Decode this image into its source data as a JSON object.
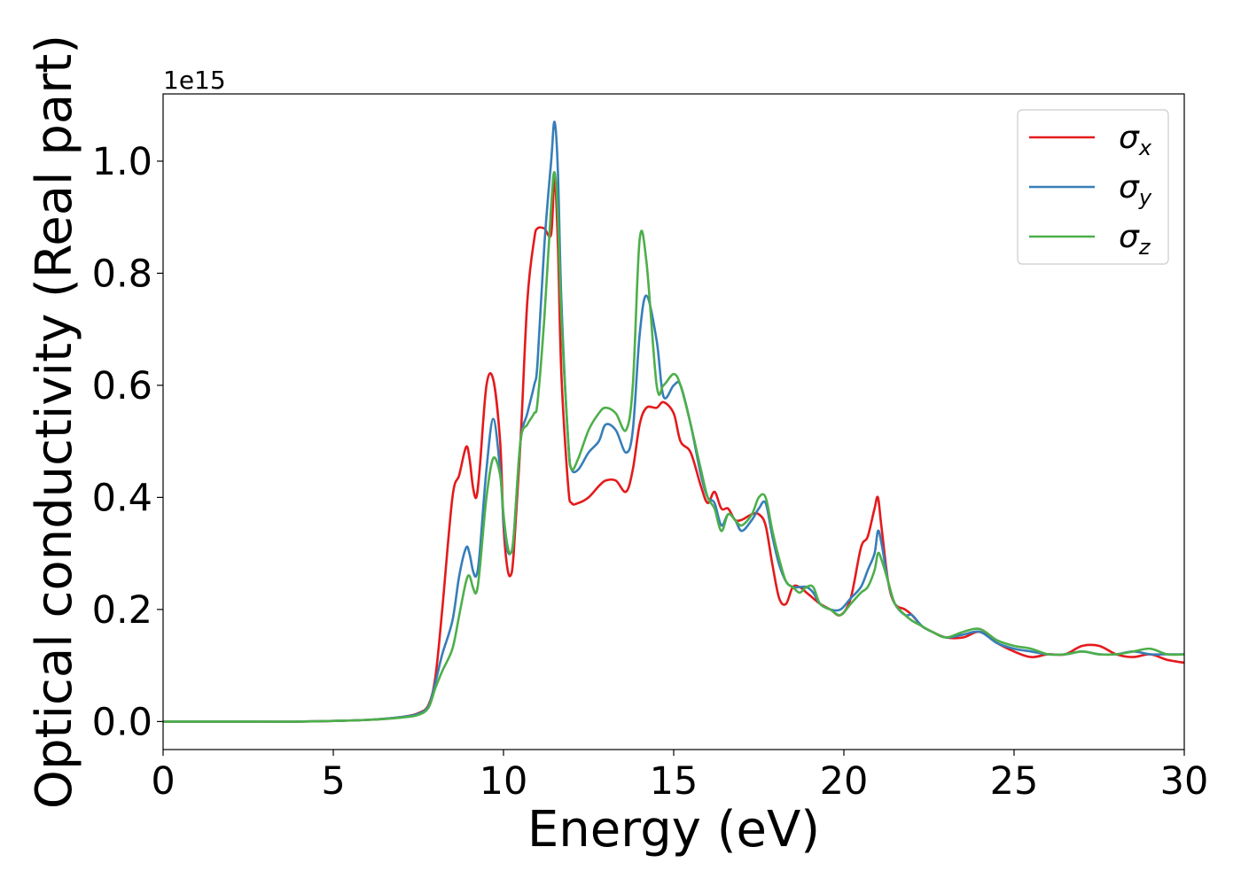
{
  "chart_data": {
    "type": "line",
    "xlabel": "Energy (eV)",
    "ylabel": "Optical conductivity (Real part)",
    "y_offset_label": "1e15",
    "xlim": [
      0,
      30
    ],
    "ylim": [
      -0.05,
      1.12
    ],
    "x_ticks": [
      0,
      5,
      10,
      15,
      20,
      25,
      30
    ],
    "x_tick_labels": [
      "0",
      "5",
      "10",
      "15",
      "20",
      "25",
      "30"
    ],
    "y_ticks": [
      0.0,
      0.2,
      0.4,
      0.6,
      0.8,
      1.0
    ],
    "y_tick_labels": [
      "0.0",
      "0.2",
      "0.4",
      "0.6",
      "0.8",
      "1.0"
    ],
    "grid": false,
    "legend_position": "top-right",
    "series": [
      {
        "name": "σ",
        "subscript": "x",
        "color": "#e41a1c",
        "x": [
          0,
          2,
          4,
          6,
          7,
          7.5,
          7.8,
          8.0,
          8.2,
          8.5,
          8.7,
          8.9,
          9.0,
          9.1,
          9.2,
          9.3,
          9.5,
          9.7,
          9.9,
          10.0,
          10.1,
          10.2,
          10.3,
          10.5,
          10.7,
          10.9,
          11.0,
          11.2,
          11.4,
          11.5,
          11.6,
          11.7,
          11.9,
          12.0,
          12.2,
          12.5,
          12.8,
          13.0,
          13.3,
          13.6,
          13.8,
          14.0,
          14.2,
          14.5,
          14.7,
          15.0,
          15.2,
          15.5,
          15.8,
          16.0,
          16.2,
          16.4,
          16.6,
          16.8,
          17.0,
          17.3,
          17.5,
          17.7,
          17.9,
          18.1,
          18.3,
          18.5,
          18.7,
          18.9,
          19.1,
          19.3,
          19.6,
          19.9,
          20.2,
          20.5,
          20.7,
          20.9,
          21.0,
          21.1,
          21.3,
          21.5,
          21.8,
          22.0,
          22.3,
          22.6,
          23.0,
          23.5,
          24.0,
          24.5,
          25.0,
          25.5,
          26.0,
          26.5,
          27.0,
          27.5,
          28.0,
          28.5,
          29.0,
          29.5,
          30.0
        ],
        "y": [
          0.0,
          0.0,
          0.0,
          0.003,
          0.008,
          0.015,
          0.03,
          0.08,
          0.2,
          0.4,
          0.44,
          0.49,
          0.47,
          0.42,
          0.4,
          0.45,
          0.6,
          0.61,
          0.5,
          0.35,
          0.28,
          0.26,
          0.3,
          0.5,
          0.75,
          0.86,
          0.88,
          0.88,
          0.87,
          0.97,
          0.85,
          0.62,
          0.42,
          0.39,
          0.39,
          0.4,
          0.42,
          0.43,
          0.43,
          0.41,
          0.45,
          0.53,
          0.56,
          0.56,
          0.57,
          0.55,
          0.5,
          0.48,
          0.42,
          0.39,
          0.41,
          0.38,
          0.38,
          0.36,
          0.36,
          0.37,
          0.37,
          0.35,
          0.28,
          0.22,
          0.21,
          0.24,
          0.24,
          0.23,
          0.22,
          0.21,
          0.2,
          0.19,
          0.22,
          0.31,
          0.33,
          0.38,
          0.4,
          0.35,
          0.25,
          0.21,
          0.2,
          0.19,
          0.17,
          0.16,
          0.15,
          0.15,
          0.16,
          0.14,
          0.125,
          0.115,
          0.12,
          0.12,
          0.135,
          0.135,
          0.12,
          0.115,
          0.12,
          0.11,
          0.105
        ]
      },
      {
        "name": "σ",
        "subscript": "y",
        "color": "#377eb8",
        "x": [
          0,
          2,
          4,
          6,
          7,
          7.5,
          7.8,
          8.0,
          8.2,
          8.5,
          8.7,
          8.9,
          9.0,
          9.1,
          9.2,
          9.3,
          9.5,
          9.7,
          9.9,
          10.0,
          10.1,
          10.2,
          10.3,
          10.5,
          10.7,
          10.9,
          11.0,
          11.2,
          11.4,
          11.5,
          11.6,
          11.7,
          11.9,
          12.0,
          12.2,
          12.5,
          12.8,
          13.0,
          13.3,
          13.6,
          13.8,
          14.0,
          14.2,
          14.5,
          14.7,
          15.0,
          15.2,
          15.5,
          15.8,
          16.0,
          16.2,
          16.4,
          16.6,
          16.8,
          17.0,
          17.3,
          17.5,
          17.7,
          17.9,
          18.1,
          18.3,
          18.5,
          18.7,
          18.9,
          19.1,
          19.3,
          19.6,
          19.9,
          20.2,
          20.5,
          20.7,
          20.9,
          21.0,
          21.1,
          21.3,
          21.5,
          21.8,
          22.0,
          22.3,
          22.6,
          23.0,
          23.5,
          24.0,
          24.5,
          25.0,
          25.5,
          26.0,
          26.5,
          27.0,
          27.5,
          28.0,
          28.5,
          29.0,
          29.5,
          30.0
        ],
        "y": [
          0.0,
          0.0,
          0.0,
          0.003,
          0.008,
          0.014,
          0.028,
          0.07,
          0.12,
          0.18,
          0.26,
          0.31,
          0.3,
          0.27,
          0.26,
          0.3,
          0.45,
          0.54,
          0.45,
          0.36,
          0.31,
          0.3,
          0.33,
          0.5,
          0.55,
          0.6,
          0.64,
          0.85,
          1.0,
          1.07,
          0.98,
          0.75,
          0.5,
          0.45,
          0.45,
          0.48,
          0.5,
          0.53,
          0.52,
          0.48,
          0.52,
          0.69,
          0.76,
          0.68,
          0.58,
          0.6,
          0.6,
          0.53,
          0.44,
          0.4,
          0.39,
          0.35,
          0.37,
          0.36,
          0.34,
          0.36,
          0.38,
          0.39,
          0.33,
          0.28,
          0.25,
          0.24,
          0.24,
          0.24,
          0.23,
          0.21,
          0.2,
          0.2,
          0.22,
          0.24,
          0.27,
          0.3,
          0.34,
          0.32,
          0.25,
          0.21,
          0.19,
          0.19,
          0.17,
          0.16,
          0.15,
          0.155,
          0.16,
          0.14,
          0.13,
          0.125,
          0.12,
          0.12,
          0.125,
          0.12,
          0.12,
          0.125,
          0.12,
          0.12,
          0.12
        ]
      },
      {
        "name": "σ",
        "subscript": "z",
        "color": "#4daf4a",
        "x": [
          0,
          2,
          4,
          6,
          7,
          7.5,
          7.8,
          8.0,
          8.2,
          8.5,
          8.7,
          8.9,
          9.0,
          9.1,
          9.2,
          9.3,
          9.5,
          9.7,
          9.9,
          10.0,
          10.1,
          10.2,
          10.3,
          10.5,
          10.7,
          10.9,
          11.0,
          11.2,
          11.4,
          11.5,
          11.6,
          11.7,
          11.9,
          12.0,
          12.2,
          12.5,
          12.8,
          13.0,
          13.3,
          13.6,
          13.8,
          14.0,
          14.2,
          14.5,
          14.7,
          15.0,
          15.2,
          15.5,
          15.8,
          16.0,
          16.2,
          16.4,
          16.6,
          16.8,
          17.0,
          17.3,
          17.5,
          17.7,
          17.9,
          18.1,
          18.3,
          18.5,
          18.7,
          18.9,
          19.1,
          19.3,
          19.6,
          19.9,
          20.2,
          20.5,
          20.7,
          20.9,
          21.0,
          21.1,
          21.3,
          21.5,
          21.8,
          22.0,
          22.3,
          22.6,
          23.0,
          23.5,
          24.0,
          24.5,
          25.0,
          25.5,
          26.0,
          26.5,
          27.0,
          27.5,
          28.0,
          28.5,
          29.0,
          29.5,
          30.0
        ],
        "y": [
          0.0,
          0.0,
          0.0,
          0.003,
          0.007,
          0.012,
          0.025,
          0.06,
          0.09,
          0.13,
          0.19,
          0.25,
          0.26,
          0.24,
          0.23,
          0.27,
          0.4,
          0.47,
          0.44,
          0.37,
          0.32,
          0.3,
          0.33,
          0.5,
          0.53,
          0.55,
          0.57,
          0.72,
          0.92,
          0.98,
          0.9,
          0.72,
          0.5,
          0.45,
          0.47,
          0.52,
          0.55,
          0.56,
          0.55,
          0.52,
          0.6,
          0.86,
          0.82,
          0.6,
          0.6,
          0.62,
          0.6,
          0.53,
          0.45,
          0.4,
          0.38,
          0.34,
          0.37,
          0.36,
          0.35,
          0.37,
          0.4,
          0.4,
          0.34,
          0.29,
          0.25,
          0.24,
          0.23,
          0.24,
          0.24,
          0.21,
          0.2,
          0.19,
          0.21,
          0.23,
          0.24,
          0.27,
          0.3,
          0.29,
          0.25,
          0.21,
          0.19,
          0.18,
          0.17,
          0.16,
          0.15,
          0.16,
          0.165,
          0.145,
          0.135,
          0.13,
          0.12,
          0.12,
          0.125,
          0.12,
          0.12,
          0.125,
          0.13,
          0.12,
          0.12
        ]
      }
    ]
  }
}
